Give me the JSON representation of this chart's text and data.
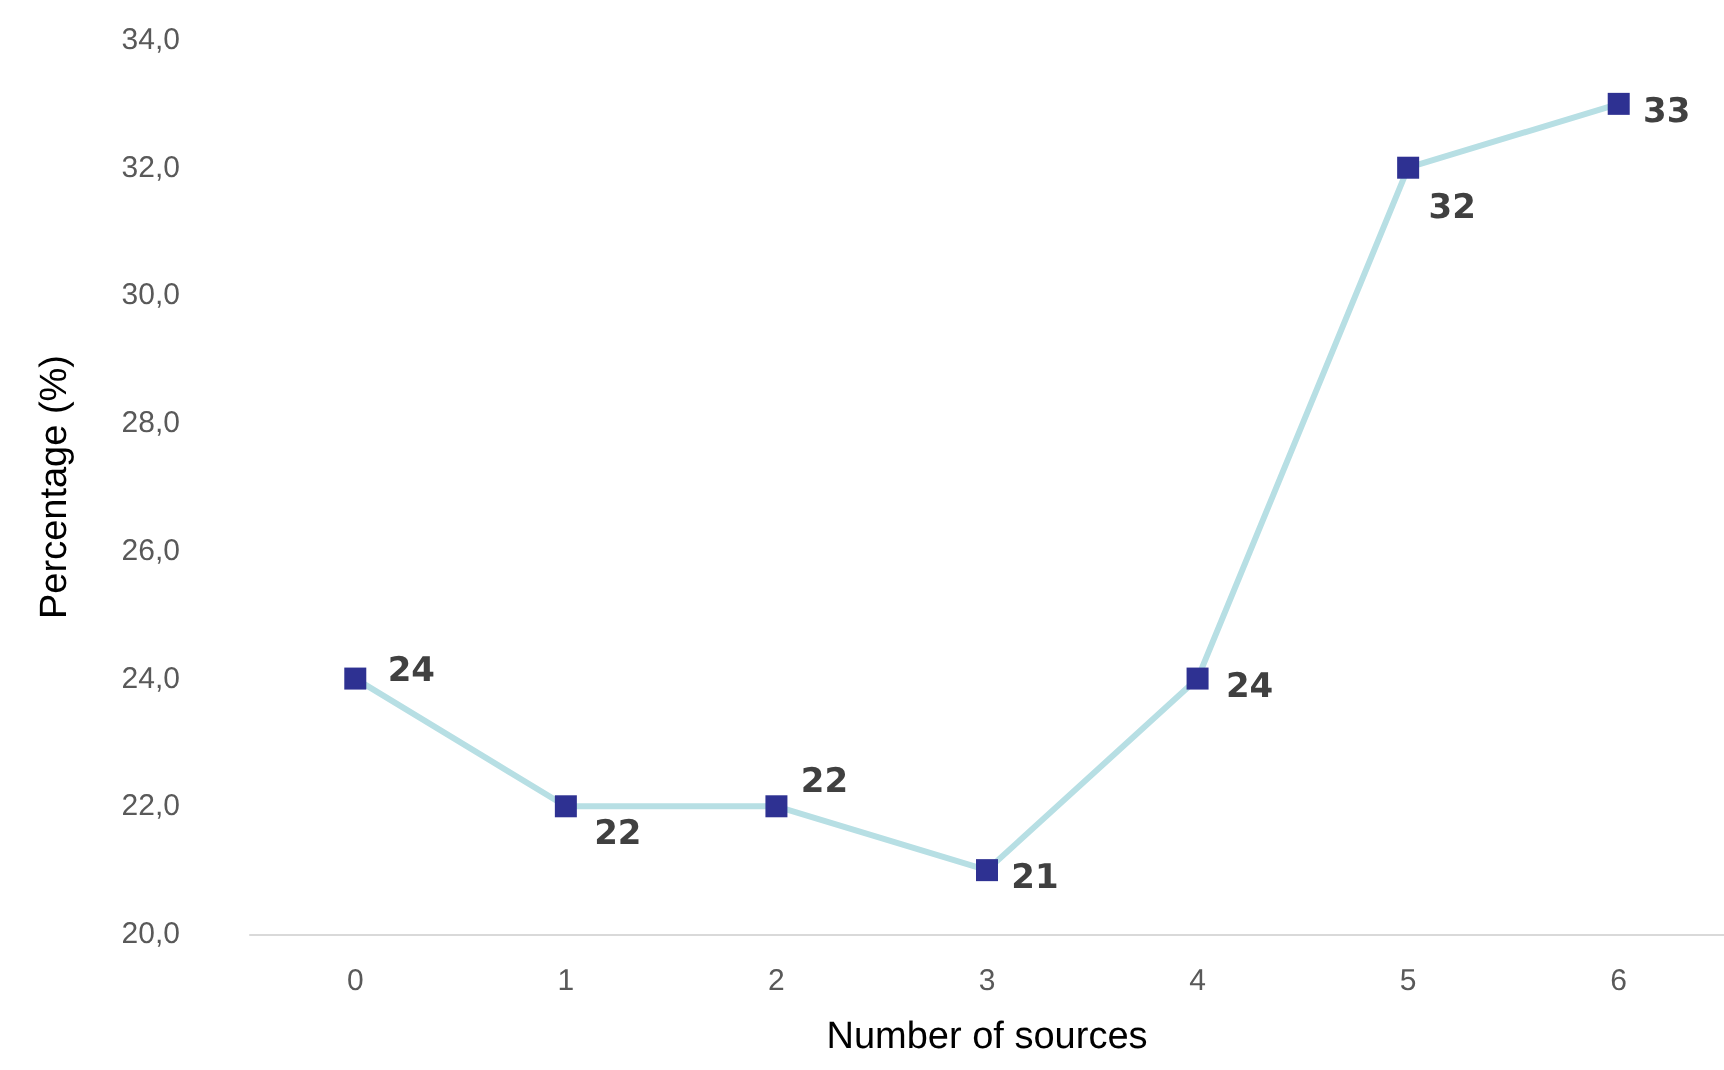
{
  "chart_data": {
    "type": "line",
    "xlabel": "Number of sources",
    "ylabel": "Percentage (%)",
    "categories": [
      "0",
      "1",
      "2",
      "3",
      "4",
      "5",
      "6"
    ],
    "series": [
      {
        "color": "#b7dfe4",
        "colors": [
          "#2e3192",
          "#2e3192",
          "#2e3192",
          "#2e3192",
          "#2e3192",
          "#2e3192",
          "#2e3192"
        ],
        "values": [
          24,
          22,
          22,
          21,
          24,
          32,
          33
        ]
      }
    ],
    "marker": "square",
    "data_labels": true,
    "grid": false,
    "ylim": [
      20,
      34
    ],
    "yticks": [
      {
        "value": 20,
        "label": "20,0"
      },
      {
        "value": 22,
        "label": "22,0"
      },
      {
        "value": 24,
        "label": "24,0"
      },
      {
        "value": 26,
        "label": "26,0"
      },
      {
        "value": 28,
        "label": "28,0"
      },
      {
        "value": 30,
        "label": "30,0"
      },
      {
        "value": 32,
        "label": "32,0"
      },
      {
        "value": 34,
        "label": "34,0"
      }
    ]
  }
}
